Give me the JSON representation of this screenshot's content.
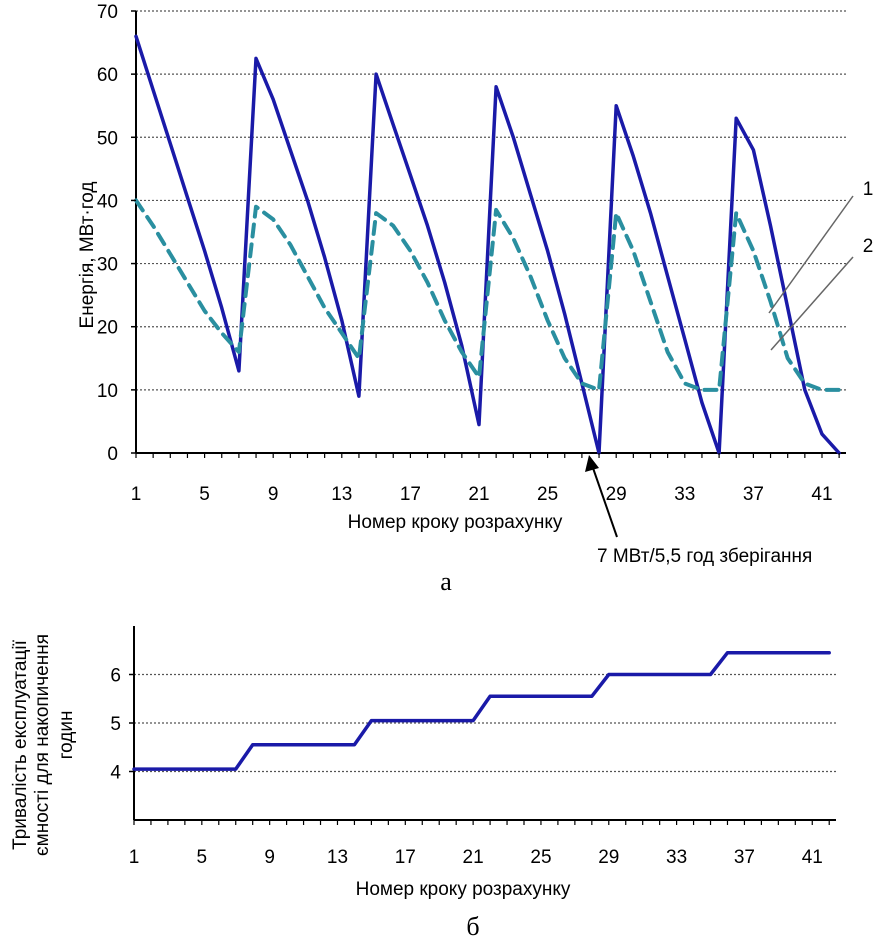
{
  "colors": {
    "series_solid": "#1a1aa8",
    "series_dashed": "#2a8fa0",
    "grid": "#555555",
    "axis": "#000000"
  },
  "chart_data": [
    {
      "type": "line",
      "panel_label": "а",
      "xlabel": "Номер кроку розрахунку",
      "ylabel": "Енергія, МВт·год",
      "xlim": [
        1,
        43
      ],
      "ylim": [
        0,
        70
      ],
      "x_ticks": [
        "1",
        "5",
        "9",
        "13",
        "17",
        "21",
        "25",
        "29",
        "33",
        "37",
        "41"
      ],
      "y_ticks": [
        "0",
        "10",
        "20",
        "30",
        "40",
        "50",
        "60",
        "70"
      ],
      "grid": "horizontal dotted",
      "series": [
        {
          "name": "1",
          "style": "solid",
          "points": [
            [
              1,
              66
            ],
            [
              2,
              57.5
            ],
            [
              3,
              49
            ],
            [
              4,
              40.5
            ],
            [
              5,
              32
            ],
            [
              6,
              23
            ],
            [
              7,
              13
            ],
            [
              8,
              62.5
            ],
            [
              9,
              56
            ],
            [
              10,
              48
            ],
            [
              11,
              40
            ],
            [
              12,
              31
            ],
            [
              13,
              21
            ],
            [
              14,
              9
            ],
            [
              15,
              60
            ],
            [
              16,
              52
            ],
            [
              17,
              44
            ],
            [
              18,
              36
            ],
            [
              19,
              27
            ],
            [
              20,
              17
            ],
            [
              21,
              4.5
            ],
            [
              22,
              58
            ],
            [
              23,
              50
            ],
            [
              24,
              41
            ],
            [
              25,
              32
            ],
            [
              26,
              22
            ],
            [
              27,
              11
            ],
            [
              28,
              0
            ],
            [
              29,
              55
            ],
            [
              30,
              47
            ],
            [
              31,
              38
            ],
            [
              32,
              28
            ],
            [
              33,
              18
            ],
            [
              34,
              8
            ],
            [
              35,
              0
            ],
            [
              36,
              53
            ],
            [
              37,
              48
            ],
            [
              38,
              36
            ],
            [
              39,
              23
            ],
            [
              40,
              10
            ],
            [
              41,
              3
            ],
            [
              42,
              0
            ]
          ]
        },
        {
          "name": "2",
          "style": "dashed",
          "points": [
            [
              1,
              40
            ],
            [
              2,
              36
            ],
            [
              3,
              31.5
            ],
            [
              4,
              27
            ],
            [
              5,
              22.5
            ],
            [
              6,
              19
            ],
            [
              7,
              16
            ],
            [
              8,
              39
            ],
            [
              9,
              37
            ],
            [
              10,
              33
            ],
            [
              11,
              28
            ],
            [
              12,
              23
            ],
            [
              13,
              19
            ],
            [
              14,
              15
            ],
            [
              15,
              38
            ],
            [
              16,
              36
            ],
            [
              17,
              32
            ],
            [
              18,
              27
            ],
            [
              19,
              21
            ],
            [
              20,
              16
            ],
            [
              21,
              12
            ],
            [
              22,
              38.5
            ],
            [
              23,
              34
            ],
            [
              24,
              28
            ],
            [
              25,
              21
            ],
            [
              26,
              15
            ],
            [
              27,
              11
            ],
            [
              28,
              10
            ],
            [
              29,
              38
            ],
            [
              30,
              32
            ],
            [
              31,
              24
            ],
            [
              32,
              16
            ],
            [
              33,
              11
            ],
            [
              34,
              10
            ],
            [
              35,
              10
            ],
            [
              36,
              38
            ],
            [
              37,
              32
            ],
            [
              38,
              24
            ],
            [
              39,
              15
            ],
            [
              40,
              11
            ],
            [
              41,
              10
            ],
            [
              42,
              10
            ]
          ]
        }
      ],
      "legend": [
        "1",
        "2"
      ],
      "annotations": [
        {
          "text": "7 МВт/5,5 год зберігання",
          "x": 28,
          "y": 0
        }
      ]
    },
    {
      "type": "line",
      "panel_label": "б",
      "xlabel": "Номер кроку розрахунку",
      "ylabel": "Тривалість експлуатації ємності для накопичення годин",
      "ylabel_lines": [
        "Тривалість експлуатації",
        "ємності для накопичення",
        "годин"
      ],
      "xlim": [
        1,
        43
      ],
      "ylim": [
        3,
        7
      ],
      "x_ticks": [
        "1",
        "5",
        "9",
        "13",
        "17",
        "21",
        "25",
        "29",
        "33",
        "37",
        "41"
      ],
      "y_ticks": [
        "4",
        "5",
        "6"
      ],
      "grid": "horizontal dotted",
      "series": [
        {
          "name": "",
          "style": "solid",
          "points": [
            [
              1,
              4.05
            ],
            [
              7,
              4.05
            ],
            [
              8,
              4.55
            ],
            [
              14,
              4.55
            ],
            [
              15,
              5.05
            ],
            [
              21,
              5.05
            ],
            [
              22,
              5.55
            ],
            [
              28,
              5.55
            ],
            [
              29,
              6.0
            ],
            [
              35,
              6.0
            ],
            [
              36,
              6.45
            ],
            [
              42,
              6.45
            ]
          ]
        }
      ]
    }
  ]
}
